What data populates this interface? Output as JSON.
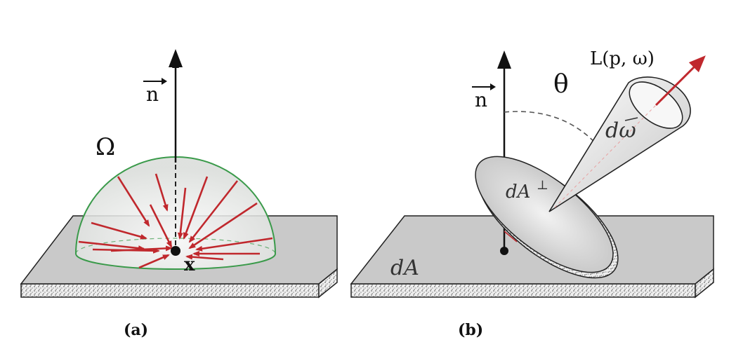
{
  "panel_a": {
    "normal_label": "n",
    "hemisphere_label": "Ω",
    "point_label": "x",
    "caption": "(a)"
  },
  "panel_b": {
    "normal_label": "n",
    "angle_label": "θ",
    "radiance_label": "L(p, ω)",
    "solid_angle_label": "dω",
    "projected_area_label": "dA",
    "projected_area_superscript": "⊥",
    "area_label": "dA",
    "caption": "(b)"
  },
  "colors": {
    "arrow_red": "#c0282d",
    "hemisphere_green": "#3a9a4a",
    "plate_top": "#c9c9c9",
    "plate_side": "#e6e6e6",
    "outline": "#222222"
  }
}
